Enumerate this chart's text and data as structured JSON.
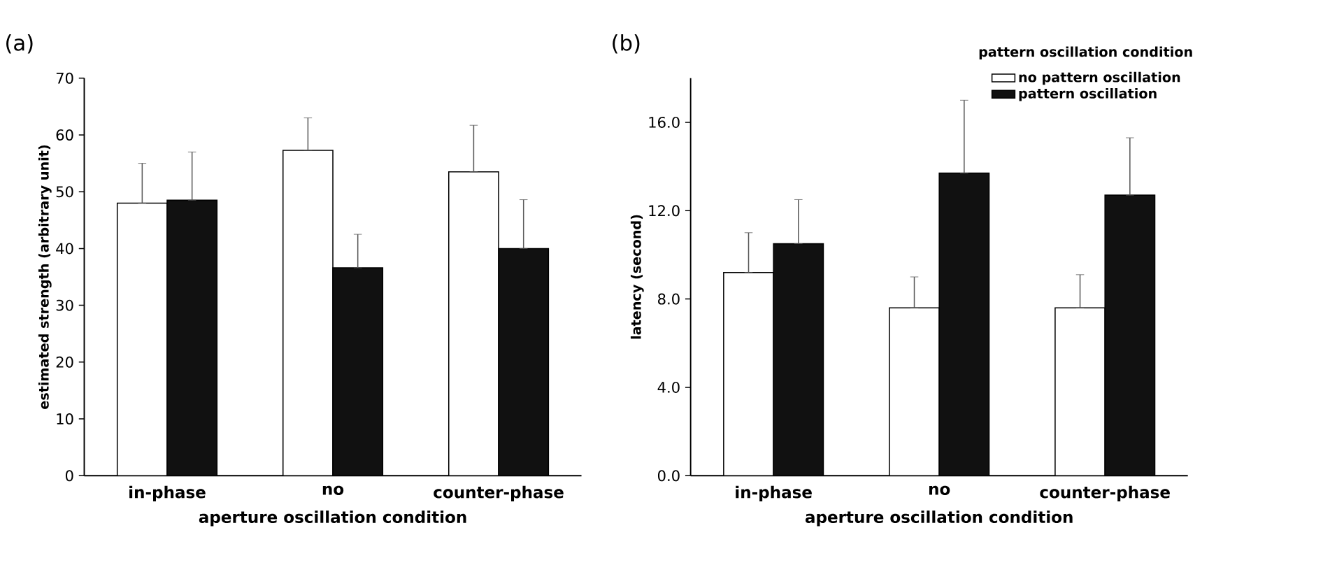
{
  "chart_data": [
    {
      "type": "bar",
      "title": "(a)",
      "xlabel": "aperture oscillation condition",
      "ylabel": "estimated strength (arbitrary unit)",
      "categories": [
        "in-phase",
        "no",
        "counter-phase"
      ],
      "ylim": [
        0,
        70
      ],
      "yticks": [
        0,
        10,
        20,
        30,
        40,
        50,
        60,
        70
      ],
      "legend": false,
      "series": [
        {
          "color": "#ffffff",
          "values": [
            48,
            57.3,
            53.5
          ],
          "errors": [
            [
              48,
              55
            ],
            [
              57.3,
              63
            ],
            [
              53.5,
              61.7
            ]
          ]
        },
        {
          "color": "#111111",
          "values": [
            48.5,
            36.6,
            40
          ],
          "errors": [
            [
              48.5,
              57
            ],
            [
              36.6,
              42.5
            ],
            [
              40,
              48.6
            ]
          ]
        }
      ]
    },
    {
      "type": "bar",
      "title": "(b)",
      "xlabel": "aperture oscillation condition",
      "ylabel": "latency (second)",
      "legend_title": "pattern oscillation condition",
      "categories": [
        "in-phase",
        "no",
        "counter-phase"
      ],
      "ylim": [
        0,
        18
      ],
      "yticks": [
        {
          "value": 0,
          "label": "0.0"
        },
        {
          "value": 4,
          "label": "4.0"
        },
        {
          "value": 8,
          "label": "8.0"
        },
        {
          "value": 12,
          "label": "12.0"
        },
        {
          "value": 16,
          "label": "16.0"
        }
      ],
      "legend": "top right",
      "series": [
        {
          "name": "no pattern oscillation",
          "color": "#ffffff",
          "values": [
            9.2,
            7.6,
            7.6
          ],
          "errors": [
            [
              9.2,
              11.0
            ],
            [
              7.6,
              9.0
            ],
            [
              7.6,
              9.1
            ]
          ]
        },
        {
          "name": "pattern oscillation",
          "color": "#111111",
          "values": [
            10.5,
            13.7,
            12.7
          ],
          "errors": [
            [
              10.5,
              12.5
            ],
            [
              13.7,
              17.0
            ],
            [
              12.7,
              15.3
            ]
          ]
        }
      ]
    }
  ]
}
